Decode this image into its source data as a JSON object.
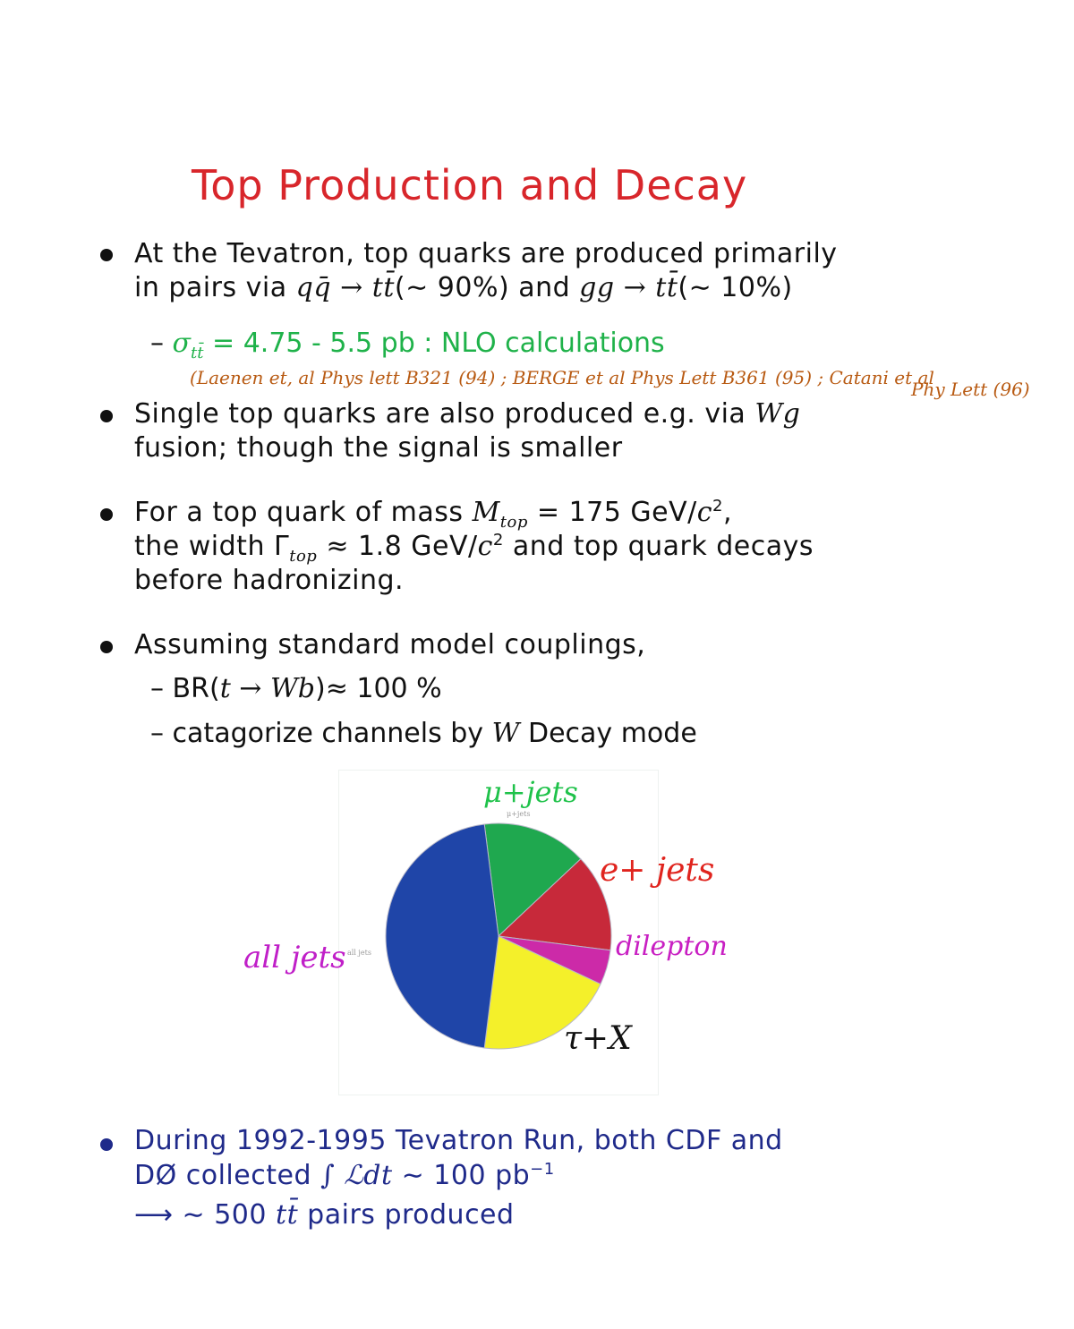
{
  "title": "Top Production and Decay",
  "bullet1": {
    "line1": "At the Tevatron, top quarks are produced primarily",
    "line2_pre": "in pairs via ",
    "line2_math1": "qq̄ → tt̄",
    "line2_mid": "(∼ 90%) and ",
    "line2_math2": "gg → tt̄",
    "line2_post": "(∼ 10%)",
    "sub_math": "σ",
    "sub_math_sub": "tt̄",
    "sub_text": " = 4.75 - 5.5 pb : NLO calculations",
    "ref_line1": "(Laenen et, al Phys lett B321 (94) ; BERGE et al Phys Lett B361 (95) ; Catani et al",
    "ref_line2": "Phy Lett (96)"
  },
  "bullet2": {
    "line1_pre": "Single top quarks are also produced e.g.  via ",
    "line1_math": "Wg",
    "line2": "fusion; though the signal is smaller"
  },
  "bullet3": {
    "line1_pre": "For a top quark of mass ",
    "line1_math": "M",
    "line1_math_sub": "top",
    "line1_post": " = 175 GeV/",
    "line1_c": "c",
    "line1_exp": "2",
    "line1_end": ",",
    "line2_pre": "the width Γ",
    "line2_sub": "top",
    "line2_mid": " ≈ 1.8 GeV/",
    "line2_c": "c",
    "line2_exp": "2",
    "line2_post": " and top quark decays",
    "line3": "before hadronizing."
  },
  "bullet4": {
    "line1": "Assuming standard model couplings,",
    "sub1_pre": "BR(",
    "sub1_math": "t → Wb",
    "sub1_post": ")≈ 100 %",
    "sub2_pre": "catagorize channels by ",
    "sub2_math": "W",
    "sub2_post": " Decay mode"
  },
  "chart_data": {
    "type": "pie",
    "slices": [
      {
        "name": "all jets",
        "value": 46,
        "color": "#1f45a8"
      },
      {
        "name": "μ+jets",
        "value": 15,
        "color": "#1fa84f"
      },
      {
        "name": "e+ jets",
        "value": 14,
        "color": "#c7293a"
      },
      {
        "name": "dilepton",
        "value": 5,
        "color": "#cc2aa8"
      },
      {
        "name": "τ+X",
        "value": 20,
        "color": "#f4f02a"
      }
    ],
    "labels": {
      "mu": "μ+jets",
      "e": "e+ jets",
      "dilepton": "dilepton",
      "alljets": "all jets",
      "tau": "τ+X",
      "small_alljets": "all jets",
      "small_mu": "μ+jets"
    }
  },
  "bullet5": {
    "line1": "During 1992-1995 Tevatron Run, both CDF and",
    "line2_pre": "DØ collected ",
    "line2_math": "∫ ℒdt",
    "line2_post": " ∼ 100 pb",
    "line2_exp": "−1",
    "line3_pre": "⟶ ∼ 500 ",
    "line3_math": "tt̄",
    "line3_post": " pairs produced"
  },
  "colors": {
    "title": "#d8262b",
    "green_text": "#1fb24a",
    "blue_text": "#1f2a8a",
    "reference": "#b85a12"
  }
}
